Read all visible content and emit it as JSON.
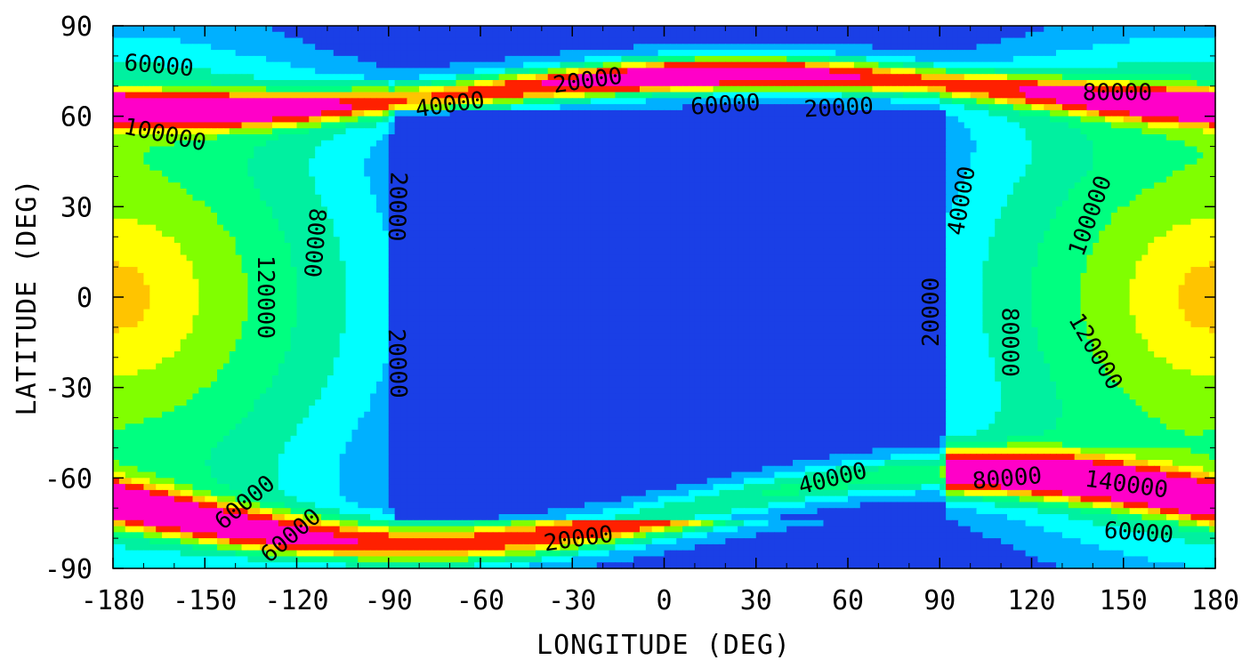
{
  "chart_data": {
    "type": "heatmap",
    "subtype": "filled-contour",
    "title": "",
    "xlabel": "LONGITUDE (DEG)",
    "ylabel": "LATITUDE (DEG)",
    "xlim": [
      -180,
      180
    ],
    "ylim": [
      -90,
      90
    ],
    "grid": false,
    "legend": "none",
    "x_ticks": [
      -180,
      -150,
      -120,
      -90,
      -60,
      -30,
      0,
      30,
      60,
      90,
      120,
      150,
      180
    ],
    "y_ticks": [
      -90,
      -60,
      -30,
      0,
      30,
      60,
      90
    ],
    "x_tick_labels": [
      "-180",
      "-150",
      "-120",
      "-90",
      "-60",
      "-30",
      "0",
      "30",
      "60",
      "90",
      "120",
      "150",
      "180"
    ],
    "y_tick_labels": [
      "-90",
      "-60",
      "-30",
      "0",
      "30",
      "60",
      "90"
    ],
    "contour_interval": 20000,
    "fill_levels": [
      {
        "min": 0,
        "max": 20000,
        "color": "#1a3fe6"
      },
      {
        "min": 20000,
        "max": 40000,
        "color": "#00b0ff"
      },
      {
        "min": 40000,
        "max": 60000,
        "color": "#00ffff"
      },
      {
        "min": 60000,
        "max": 80000,
        "color": "#00f0a0"
      },
      {
        "min": 80000,
        "max": 100000,
        "color": "#00ff80"
      },
      {
        "min": 100000,
        "max": 120000,
        "color": "#80ff00"
      },
      {
        "min": 120000,
        "max": 140000,
        "color": "#ffff00"
      },
      {
        "min": 140000,
        "max": 160000,
        "color": "#ffc400"
      },
      {
        "min": 160000,
        "max": 200000,
        "color": "#ff2000"
      },
      {
        "min": 200000,
        "max": 260000,
        "color": "#ff00c8"
      }
    ],
    "contour_labels": [
      {
        "text": "60000",
        "lon": -165,
        "lat": 77,
        "rotate": 5
      },
      {
        "text": "40000",
        "lon": -70,
        "lat": 64,
        "rotate": -8
      },
      {
        "text": "20000",
        "lon": -25,
        "lat": 72,
        "rotate": -8
      },
      {
        "text": "60000",
        "lon": 20,
        "lat": 64,
        "rotate": -4
      },
      {
        "text": "20000",
        "lon": 57,
        "lat": 63,
        "rotate": -3
      },
      {
        "text": "80000",
        "lon": 148,
        "lat": 68,
        "rotate": 0
      },
      {
        "text": "100000",
        "lon": -163,
        "lat": 54,
        "rotate": 12
      },
      {
        "text": "20000",
        "lon": -87,
        "lat": 30,
        "rotate": 92
      },
      {
        "text": "80000",
        "lon": -114,
        "lat": 18,
        "rotate": 95
      },
      {
        "text": "120000",
        "lon": -130,
        "lat": 0,
        "rotate": 90
      },
      {
        "text": "20000",
        "lon": -87,
        "lat": -22,
        "rotate": 88
      },
      {
        "text": "40000",
        "lon": 97,
        "lat": 32,
        "rotate": -80
      },
      {
        "text": "100000",
        "lon": 139,
        "lat": 27,
        "rotate": -70
      },
      {
        "text": "20000",
        "lon": 87,
        "lat": -5,
        "rotate": -90
      },
      {
        "text": "80000",
        "lon": 113,
        "lat": -15,
        "rotate": 90
      },
      {
        "text": "120000",
        "lon": 141,
        "lat": -18,
        "rotate": 60
      },
      {
        "text": "60000",
        "lon": -137,
        "lat": -68,
        "rotate": -40
      },
      {
        "text": "60000",
        "lon": -122,
        "lat": -79,
        "rotate": -40
      },
      {
        "text": "20000",
        "lon": -28,
        "lat": -80,
        "rotate": -8
      },
      {
        "text": "40000",
        "lon": 55,
        "lat": -60,
        "rotate": -14
      },
      {
        "text": "80000",
        "lon": 112,
        "lat": -60,
        "rotate": -5
      },
      {
        "text": "140000",
        "lon": 151,
        "lat": -62,
        "rotate": 8
      },
      {
        "text": "60000",
        "lon": 155,
        "lat": -78,
        "rotate": 4
      }
    ]
  }
}
